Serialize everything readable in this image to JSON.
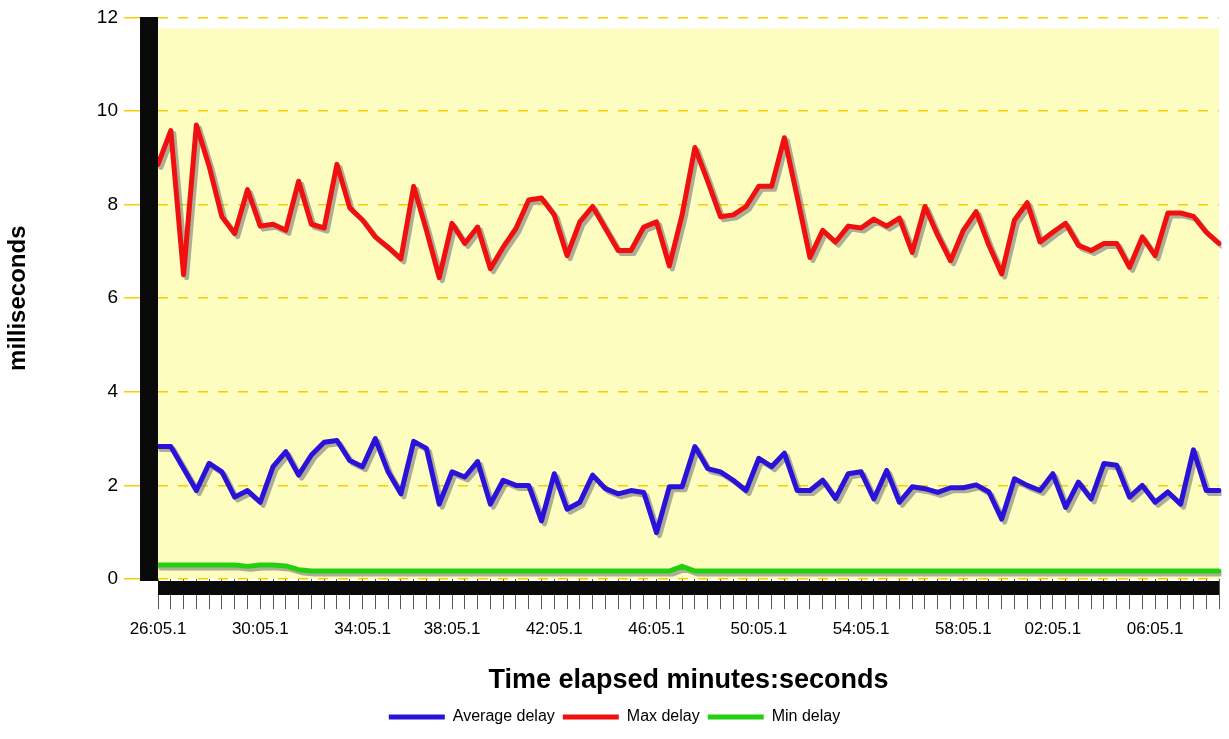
{
  "chart_data": {
    "type": "line",
    "xlabel": "Time elapsed minutes:seconds",
    "ylabel": "milliseconds",
    "categories": [
      "26:05.1",
      null,
      null,
      null,
      null,
      null,
      null,
      null,
      "30:05.1",
      null,
      null,
      null,
      null,
      null,
      null,
      null,
      "34:05.1",
      null,
      null,
      null,
      null,
      null,
      null,
      "38:05.1",
      null,
      null,
      null,
      null,
      null,
      null,
      null,
      "42:05.1",
      null,
      null,
      null,
      null,
      null,
      null,
      null,
      "46:05.1",
      null,
      null,
      null,
      null,
      null,
      null,
      null,
      "50:05.1",
      null,
      null,
      null,
      null,
      null,
      null,
      null,
      "54:05.1",
      null,
      null,
      null,
      null,
      null,
      null,
      null,
      "58:05.1",
      null,
      null,
      null,
      null,
      null,
      null,
      "02:05.1",
      null,
      null,
      null,
      null,
      null,
      null,
      null,
      "06:05.1",
      null,
      null,
      null,
      null,
      null
    ],
    "series": [
      {
        "name": "Average delay",
        "color": "#2a12d8",
        "values": [
          2.83,
          2.83,
          2.36,
          1.89,
          2.47,
          2.29,
          1.75,
          1.89,
          1.64,
          2.4,
          2.72,
          2.22,
          2.65,
          2.92,
          2.96,
          2.53,
          2.4,
          3.0,
          2.29,
          1.82,
          2.94,
          2.79,
          1.6,
          2.29,
          2.18,
          2.51,
          1.6,
          2.11,
          2.0,
          2.0,
          1.24,
          2.25,
          1.49,
          1.64,
          2.22,
          1.93,
          1.82,
          1.89,
          1.85,
          0.99,
          1.97,
          1.97,
          2.83,
          2.36,
          2.29,
          2.11,
          1.89,
          2.58,
          2.4,
          2.69,
          1.89,
          1.89,
          2.11,
          1.72,
          2.25,
          2.29,
          1.71,
          2.32,
          1.64,
          1.97,
          1.93,
          1.85,
          1.95,
          1.95,
          2.01,
          1.86,
          1.28,
          2.14,
          2.0,
          1.89,
          2.25,
          1.53,
          2.07,
          1.71,
          2.47,
          2.43,
          1.75,
          2.0,
          1.64,
          1.86,
          1.6,
          2.76,
          1.89,
          1.89
        ]
      },
      {
        "name": "Max delay",
        "color": "#f01010",
        "values": [
          8.86,
          9.58,
          6.5,
          9.7,
          8.82,
          7.74,
          7.38,
          8.32,
          7.54,
          7.58,
          7.45,
          8.5,
          7.58,
          7.5,
          8.86,
          7.93,
          7.67,
          7.31,
          7.09,
          6.84,
          8.39,
          7.45,
          6.44,
          7.6,
          7.17,
          7.52,
          6.63,
          7.09,
          7.49,
          8.1,
          8.14,
          7.78,
          6.91,
          7.63,
          7.96,
          7.49,
          7.02,
          7.02,
          7.52,
          7.63,
          6.69,
          7.78,
          9.22,
          8.5,
          7.74,
          7.78,
          7.96,
          8.39,
          8.39,
          9.43,
          8.17,
          6.87,
          7.45,
          7.2,
          7.54,
          7.5,
          7.69,
          7.54,
          7.71,
          6.98,
          7.96,
          7.34,
          6.8,
          7.45,
          7.85,
          7.13,
          6.52,
          7.67,
          8.04,
          7.2,
          7.41,
          7.6,
          7.13,
          7.02,
          7.17,
          7.17,
          6.66,
          7.31,
          6.91,
          7.82,
          7.82,
          7.75,
          7.41,
          7.17
        ]
      },
      {
        "name": "Min delay",
        "color": "#22d010",
        "values": [
          0.3,
          0.3,
          0.3,
          0.3,
          0.3,
          0.3,
          0.3,
          0.27,
          0.3,
          0.3,
          0.28,
          0.2,
          0.17,
          0.17,
          0.17,
          0.17,
          0.17,
          0.17,
          0.17,
          0.17,
          0.17,
          0.17,
          0.17,
          0.17,
          0.17,
          0.17,
          0.17,
          0.17,
          0.17,
          0.17,
          0.17,
          0.17,
          0.17,
          0.17,
          0.17,
          0.17,
          0.17,
          0.17,
          0.17,
          0.17,
          0.17,
          0.27,
          0.17,
          0.17,
          0.17,
          0.17,
          0.17,
          0.17,
          0.17,
          0.17,
          0.17,
          0.17,
          0.17,
          0.17,
          0.17,
          0.17,
          0.17,
          0.17,
          0.17,
          0.17,
          0.17,
          0.17,
          0.17,
          0.17,
          0.17,
          0.17,
          0.17,
          0.17,
          0.17,
          0.17,
          0.17,
          0.17,
          0.17,
          0.17,
          0.17,
          0.17,
          0.17,
          0.17,
          0.17,
          0.17,
          0.17,
          0.17,
          0.17,
          0.17
        ]
      }
    ],
    "ylim": [
      0,
      12
    ],
    "yticks": [
      0,
      2,
      4,
      6,
      8,
      10,
      12
    ],
    "grid": "y",
    "legend": "bottom",
    "marker": "none",
    "line_style": "solid"
  }
}
